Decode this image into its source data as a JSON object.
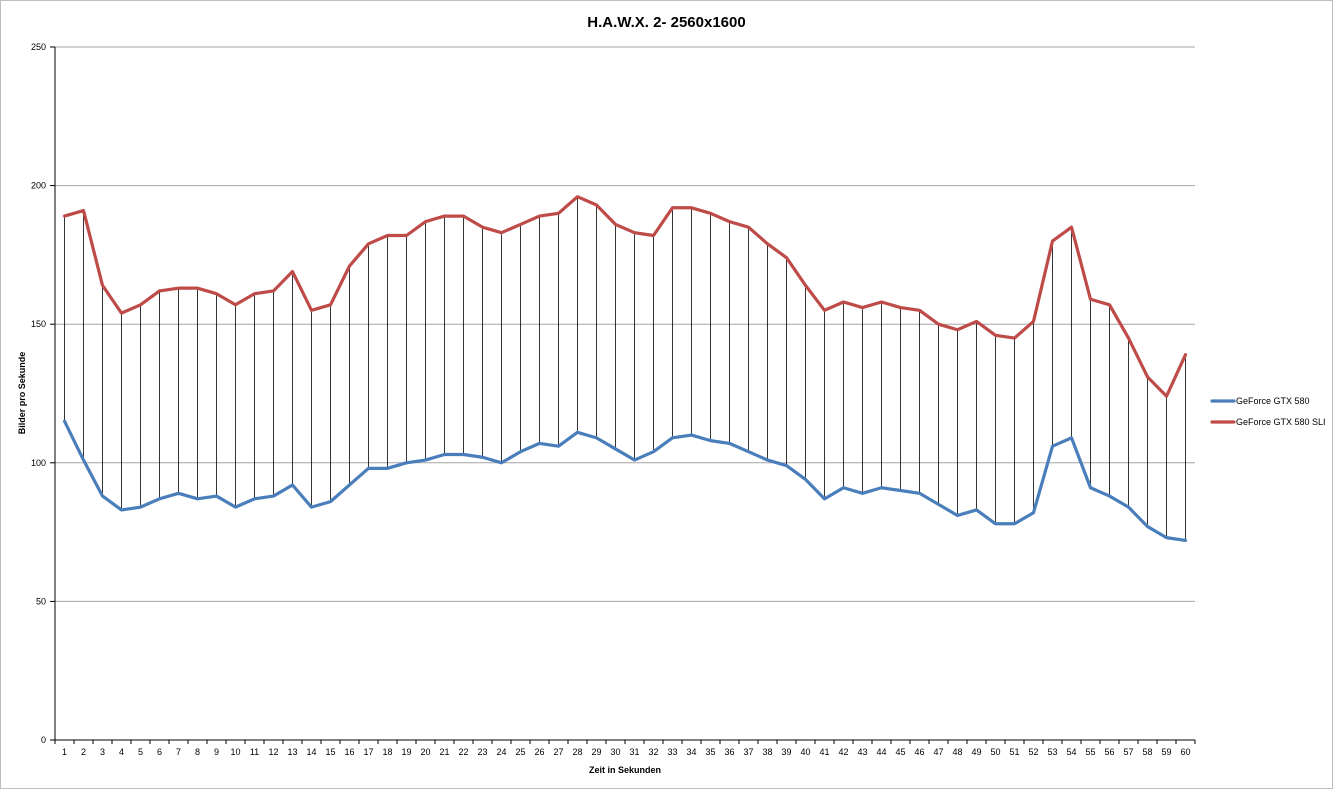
{
  "chart_data": {
    "type": "line",
    "title": "H.A.W.X. 2- 2560x1600",
    "xlabel": "Zeit in Sekunden",
    "ylabel": "Bilder pro Sekunde",
    "ylim": [
      0,
      250
    ],
    "yticks": [
      0,
      50,
      100,
      150,
      200,
      250
    ],
    "grid": "horizontal",
    "hi_lo_lines": true,
    "legend_position": "right",
    "categories": [
      "1",
      "2",
      "3",
      "4",
      "5",
      "6",
      "7",
      "8",
      "9",
      "10",
      "11",
      "12",
      "13",
      "14",
      "15",
      "16",
      "17",
      "18",
      "19",
      "20",
      "21",
      "22",
      "23",
      "24",
      "25",
      "26",
      "27",
      "28",
      "29",
      "30",
      "31",
      "32",
      "33",
      "34",
      "35",
      "36",
      "37",
      "38",
      "39",
      "40",
      "41",
      "42",
      "43",
      "44",
      "45",
      "46",
      "47",
      "48",
      "49",
      "50",
      "51",
      "52",
      "53",
      "54",
      "55",
      "56",
      "57",
      "58",
      "59",
      "60"
    ],
    "series": [
      {
        "name": "GeForce GTX 580",
        "color": "#4a7ebb",
        "values": [
          115,
          101,
          88,
          83,
          84,
          87,
          89,
          87,
          88,
          84,
          87,
          88,
          92,
          84,
          86,
          92,
          98,
          98,
          100,
          101,
          103,
          103,
          102,
          100,
          104,
          107,
          106,
          111,
          109,
          105,
          101,
          104,
          109,
          110,
          108,
          107,
          104,
          101,
          99,
          94,
          87,
          91,
          89,
          91,
          90,
          89,
          85,
          81,
          83,
          78,
          78,
          82,
          106,
          109,
          91,
          88,
          84,
          77,
          73,
          72
        ]
      },
      {
        "name": "GeForce GTX 580 SLI",
        "color": "#be4b48",
        "values": [
          189,
          191,
          164,
          154,
          157,
          162,
          163,
          163,
          161,
          157,
          161,
          162,
          169,
          155,
          157,
          171,
          179,
          182,
          182,
          187,
          189,
          189,
          185,
          183,
          186,
          189,
          190,
          196,
          193,
          186,
          183,
          182,
          192,
          192,
          190,
          187,
          185,
          179,
          174,
          164,
          155,
          158,
          156,
          158,
          156,
          155,
          150,
          148,
          151,
          146,
          145,
          151,
          180,
          185,
          159,
          157,
          145,
          131,
          124,
          139
        ]
      }
    ]
  }
}
